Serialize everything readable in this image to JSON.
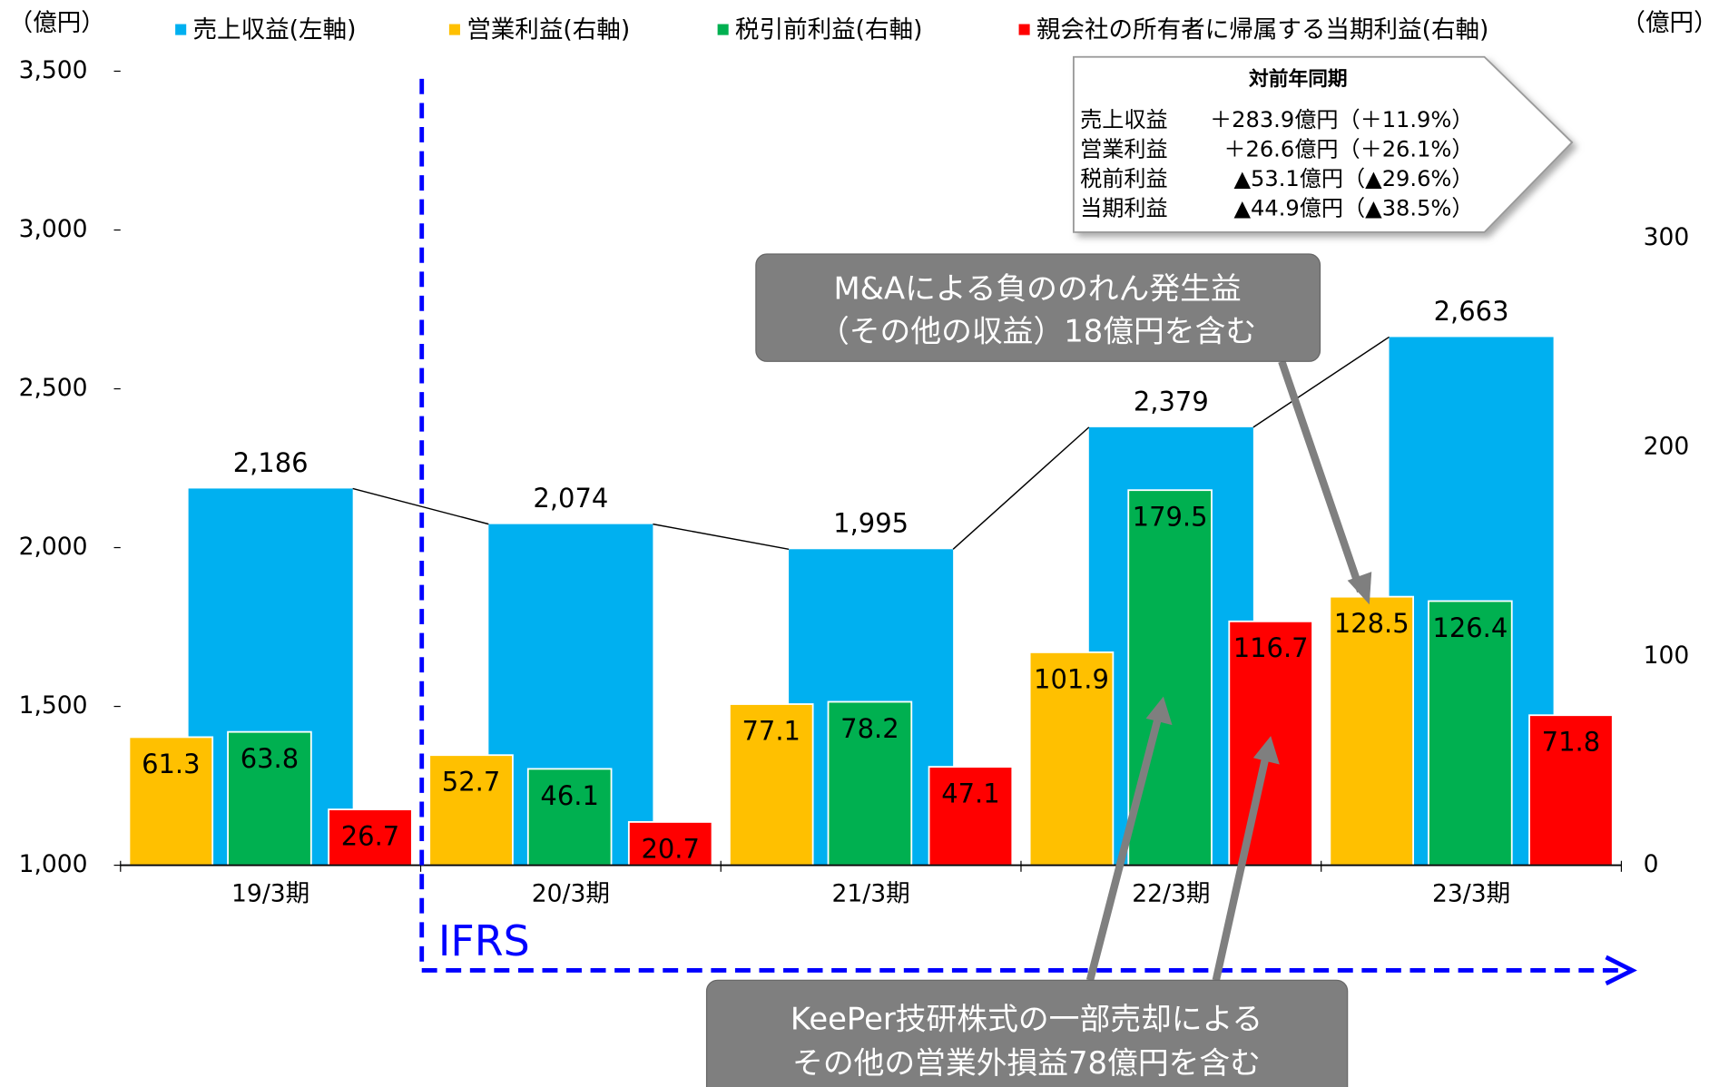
{
  "chart_data": {
    "type": "bar",
    "categories": [
      "19/3期",
      "20/3期",
      "21/3期",
      "22/3期",
      "23/3期"
    ],
    "y_label": "（億円）",
    "y2_label": "（億円）",
    "ylim": [
      1000,
      3500
    ],
    "yticks": [
      {
        "value": 1000,
        "label": "1,000"
      },
      {
        "value": 1500,
        "label": "1,500"
      },
      {
        "value": 2000,
        "label": "2,000"
      },
      {
        "value": 2500,
        "label": "2,500"
      },
      {
        "value": 3000,
        "label": "3,000"
      },
      {
        "value": 3500,
        "label": "3,500"
      }
    ],
    "y2lim": [
      0,
      380
    ],
    "y2ticks": [
      0,
      100,
      200,
      300
    ],
    "series": [
      {
        "name": "売上収益(左軸)",
        "color": "#00b0f0",
        "values": [
          2186,
          2074,
          1995,
          2379,
          2663
        ],
        "value_labels": [
          "2,186",
          "2,074",
          "1,995",
          "2,379",
          "2,663"
        ]
      },
      {
        "name": "営業利益(右軸)",
        "color": "#ffc000",
        "axis": "y2",
        "values": [
          61.3,
          52.7,
          77.1,
          101.9,
          128.5
        ]
      },
      {
        "name": "税引前利益(右軸)",
        "color": "#00b050",
        "axis": "y2",
        "values": [
          63.8,
          46.1,
          78.2,
          179.5,
          126.4
        ]
      },
      {
        "name": "親会社の所有者に帰属する当期利益(右軸)",
        "color": "#ff0000",
        "axis": "y2",
        "values": [
          26.7,
          20.7,
          47.1,
          116.7,
          71.8
        ]
      }
    ],
    "summary": {
      "title": "対前年同期",
      "rows": [
        [
          "売上収益",
          "＋283.9億円（＋11.9%）"
        ],
        [
          "営業利益",
          "＋26.6億円（＋26.1%）"
        ],
        [
          "税前利益",
          "▲53.1億円（▲29.6%）"
        ],
        [
          "当期利益",
          "▲44.9億円（▲38.5%）"
        ]
      ]
    },
    "callouts": [
      [
        "M&Aによる負ののれん発生益",
        "（その他の収益）18億円を含む"
      ],
      [
        "KeePer技研株式の一部売却による",
        "その他の営業外損益78億円を含む"
      ]
    ],
    "boundary_label": "IFRS"
  }
}
